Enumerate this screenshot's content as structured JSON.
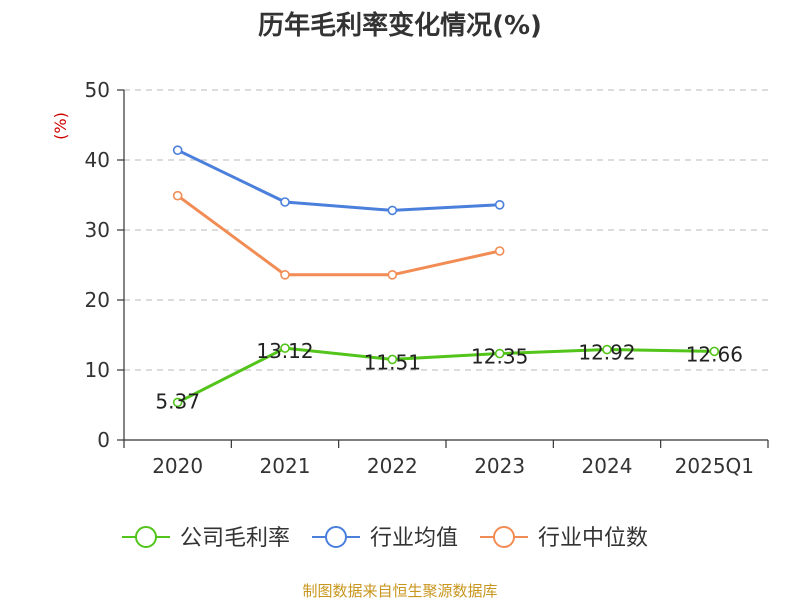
{
  "title": "历年毛利率变化情况(%)",
  "unit": "(%)",
  "source": "制图数据来自恒生聚源数据库",
  "chart_data": {
    "type": "line",
    "categories": [
      "2020",
      "2021",
      "2022",
      "2023",
      "2024",
      "2025Q1"
    ],
    "ylim": [
      0,
      50
    ],
    "yticks": [
      0,
      10,
      20,
      30,
      40,
      50
    ],
    "grid": true,
    "legend_position": "bottom",
    "series": [
      {
        "name": "公司毛利率",
        "color": "#52c41a",
        "values": [
          5.37,
          13.12,
          11.51,
          12.35,
          12.92,
          12.66
        ],
        "labels": [
          "5.37",
          "13.12",
          "11.51",
          "12.35",
          "12.92",
          "12.66"
        ]
      },
      {
        "name": "行业均值",
        "color": "#4a7fdc",
        "values": [
          41.4,
          34.0,
          32.8,
          33.6,
          null,
          null
        ]
      },
      {
        "name": "行业中位数",
        "color": "#f28c55",
        "values": [
          34.9,
          23.6,
          23.6,
          27.0,
          null,
          null
        ]
      }
    ]
  }
}
